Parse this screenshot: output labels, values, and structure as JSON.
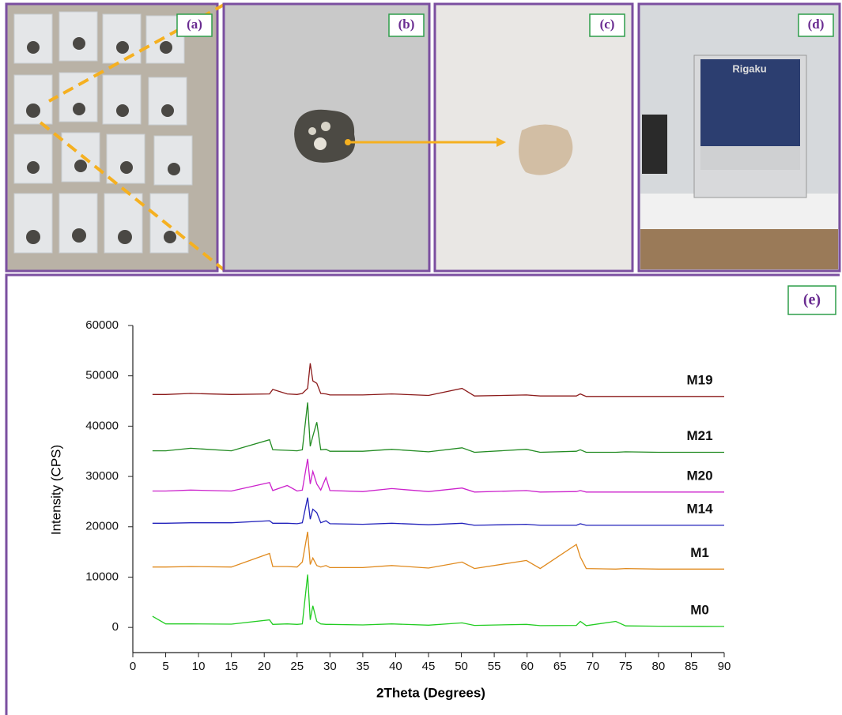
{
  "panels": [
    "(a)",
    "(b)",
    "(c)",
    "(d)",
    "(e)"
  ],
  "chart_data": {
    "type": "line",
    "xlabel": "2Theta (Degrees)",
    "ylabel": "Intensity (CPS)",
    "xlim": [
      0,
      90
    ],
    "xticks": [
      0,
      5,
      10,
      15,
      20,
      25,
      30,
      35,
      40,
      45,
      50,
      55,
      60,
      65,
      70,
      75,
      80,
      85,
      90
    ],
    "ylim": [
      -5000,
      60000
    ],
    "yticks": [
      0,
      10000,
      20000,
      30000,
      40000,
      50000,
      60000
    ],
    "x": [
      3,
      5,
      8.8,
      15,
      20.8,
      21.3,
      23.5,
      25,
      25.8,
      26.6,
      27.0,
      27.4,
      28.0,
      28.6,
      29.4,
      30,
      35,
      39.4,
      45,
      50.1,
      52,
      59.9,
      62,
      67.5,
      68.1,
      69,
      73.5,
      75,
      80,
      90
    ],
    "series": [
      {
        "name": "M0",
        "color": "#22cc22",
        "values": [
          2200,
          700,
          700,
          650,
          1500,
          600,
          700,
          600,
          700,
          10500,
          1500,
          4300,
          1200,
          700,
          600,
          600,
          500,
          700,
          450,
          900,
          400,
          600,
          350,
          400,
          1200,
          350,
          1200,
          300,
          250,
          200
        ]
      },
      {
        "name": "M1",
        "color": "#e08a1e",
        "values": [
          12000,
          12000,
          12100,
          12000,
          14700,
          12100,
          12100,
          12000,
          13000,
          19000,
          12500,
          13800,
          12300,
          12000,
          12300,
          11900,
          11900,
          12300,
          11800,
          13000,
          11700,
          13300,
          11700,
          16500,
          14000,
          11700,
          11600,
          11700,
          11600,
          11600
        ]
      },
      {
        "name": "M14",
        "color": "#2222bb",
        "values": [
          20700,
          20700,
          20800,
          20800,
          21200,
          20700,
          20700,
          20600,
          20800,
          25800,
          21500,
          23500,
          22800,
          20800,
          21200,
          20600,
          20500,
          20700,
          20400,
          20700,
          20300,
          20500,
          20300,
          20300,
          20600,
          20300,
          20300,
          20300,
          20300,
          20300
        ]
      },
      {
        "name": "M20",
        "color": "#cc22cc",
        "values": [
          27100,
          27100,
          27300,
          27100,
          28800,
          27200,
          28200,
          27100,
          27300,
          33500,
          28500,
          31000,
          28500,
          27300,
          29800,
          27200,
          27000,
          27600,
          27000,
          27700,
          26900,
          27200,
          26900,
          27000,
          27200,
          26900,
          26900,
          26900,
          26900,
          26900
        ]
      },
      {
        "name": "M21",
        "color": "#228b22",
        "values": [
          35100,
          35100,
          35600,
          35100,
          37300,
          35300,
          35200,
          35100,
          35300,
          44700,
          36000,
          38000,
          40800,
          35300,
          35400,
          35000,
          35000,
          35400,
          34900,
          35700,
          34800,
          35400,
          34800,
          35000,
          35300,
          34800,
          34800,
          34900,
          34800,
          34800
        ]
      },
      {
        "name": "M19",
        "color": "#8b1a1a",
        "values": [
          46300,
          46300,
          46500,
          46300,
          46400,
          47300,
          46400,
          46300,
          46500,
          47500,
          52500,
          49000,
          48500,
          46500,
          46400,
          46200,
          46200,
          46400,
          46100,
          47500,
          46000,
          46200,
          46000,
          46000,
          46400,
          45900,
          45900,
          45900,
          45900,
          45900
        ]
      }
    ]
  }
}
